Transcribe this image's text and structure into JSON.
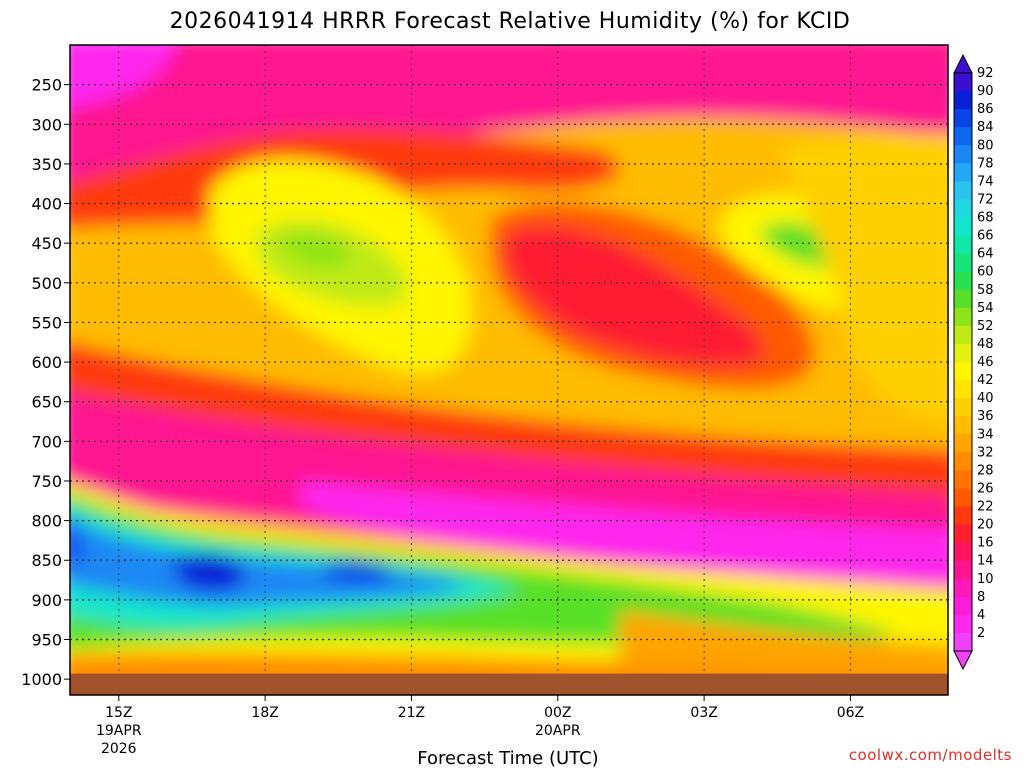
{
  "chart_data": {
    "type": "heatmap",
    "title": "2026041914 HRRR Forecast Relative Humidity (%) for KCID",
    "xlabel": "Forecast Time (UTC)",
    "credit": "coolwx.com/modelts",
    "x_ticks": [
      {
        "label": "15Z",
        "sub1": "19APR",
        "sub2": "2026",
        "hour": 15
      },
      {
        "label": "18Z",
        "sub1": "",
        "sub2": "",
        "hour": 18
      },
      {
        "label": "21Z",
        "sub1": "",
        "sub2": "",
        "hour": 21
      },
      {
        "label": "00Z",
        "sub1": "20APR",
        "sub2": "",
        "hour": 24
      },
      {
        "label": "03Z",
        "sub1": "",
        "sub2": "",
        "hour": 27
      },
      {
        "label": "06Z",
        "sub1": "",
        "sub2": "",
        "hour": 30
      }
    ],
    "x_range_hours": [
      14,
      32
    ],
    "y_ticks": [
      250,
      300,
      350,
      400,
      450,
      500,
      550,
      600,
      650,
      700,
      750,
      800,
      850,
      900,
      950,
      1000
    ],
    "y_range_hpa": [
      200,
      1020
    ],
    "ground_level_hpa": 993,
    "colorbar": {
      "labels": [
        "92",
        "90",
        "86",
        "84",
        "80",
        "78",
        "74",
        "72",
        "68",
        "66",
        "64",
        "60",
        "58",
        "54",
        "52",
        "48",
        "46",
        "42",
        "40",
        "36",
        "34",
        "32",
        "28",
        "26",
        "22",
        "20",
        "16",
        "14",
        "10",
        "8",
        "4",
        "2"
      ],
      "colors": [
        "#3a0fcf",
        "#0a1fd8",
        "#0a44e8",
        "#0f66f0",
        "#1a88f4",
        "#24a8f4",
        "#2cc4ee",
        "#1fd8e0",
        "#12e6cc",
        "#10e8a8",
        "#18e47c",
        "#28e050",
        "#58e028",
        "#8ee418",
        "#c0ea14",
        "#e4f010",
        "#fff500",
        "#ffe400",
        "#ffd000",
        "#ffbc00",
        "#ffa400",
        "#ff8c00",
        "#ff7400",
        "#ff5a00",
        "#ff3a10",
        "#ff1e30",
        "#ff1260",
        "#ff1490",
        "#ff18b8",
        "#ff1cd8",
        "#ff28ee",
        "#f040f8"
      ]
    },
    "surface_color": "#a0522d"
  }
}
